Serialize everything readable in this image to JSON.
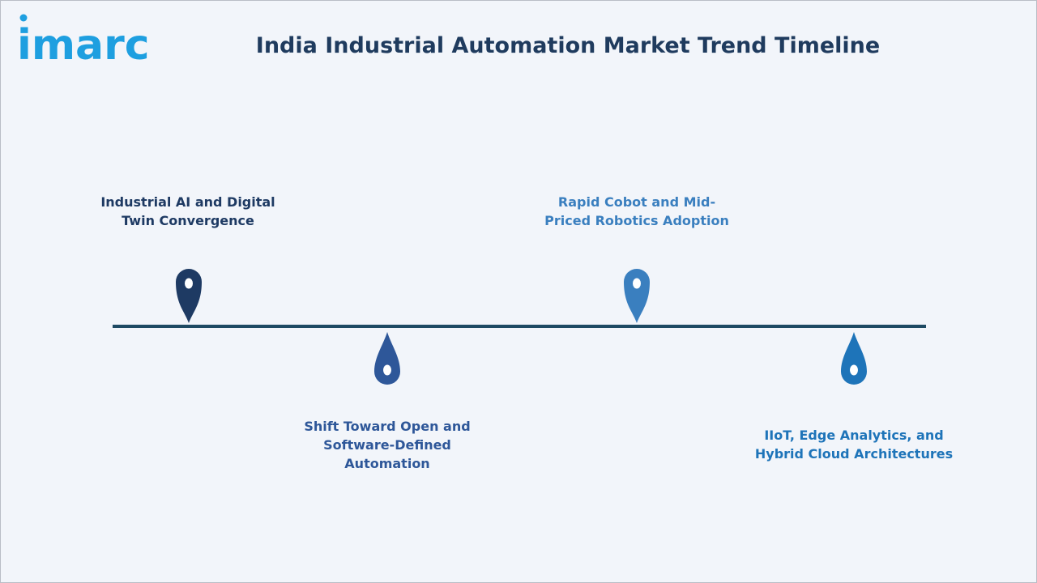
{
  "logo": {
    "text": "imarc",
    "color": "#1e9fe0"
  },
  "title": "India Industrial Automation Market Trend Timeline",
  "colors": {
    "line": "#1e4a63",
    "title": "#1f3b5e"
  },
  "milestones": [
    {
      "name": "industrial-ai-digital-twin",
      "lines": [
        "Industrial AI and Digital",
        "Twin Convergence"
      ],
      "color": "#1e3a63",
      "side": "above",
      "marker_icon": "map-pin-icon"
    },
    {
      "name": "open-software-defined-automation",
      "lines": [
        "Shift Toward Open and",
        "Software-Defined",
        "Automation"
      ],
      "color": "#2e5799",
      "side": "below",
      "marker_icon": "drop-pin-icon"
    },
    {
      "name": "cobot-robotics-adoption",
      "lines": [
        "Rapid Cobot and Mid-",
        "Priced Robotics Adoption"
      ],
      "color": "#3a7fbf",
      "side": "above",
      "marker_icon": "map-pin-icon"
    },
    {
      "name": "iiot-edge-hybrid-cloud",
      "lines": [
        "IIoT, Edge Analytics, and",
        "Hybrid Cloud Architectures"
      ],
      "color": "#1e74b9",
      "side": "below",
      "marker_icon": "drop-pin-icon"
    }
  ]
}
